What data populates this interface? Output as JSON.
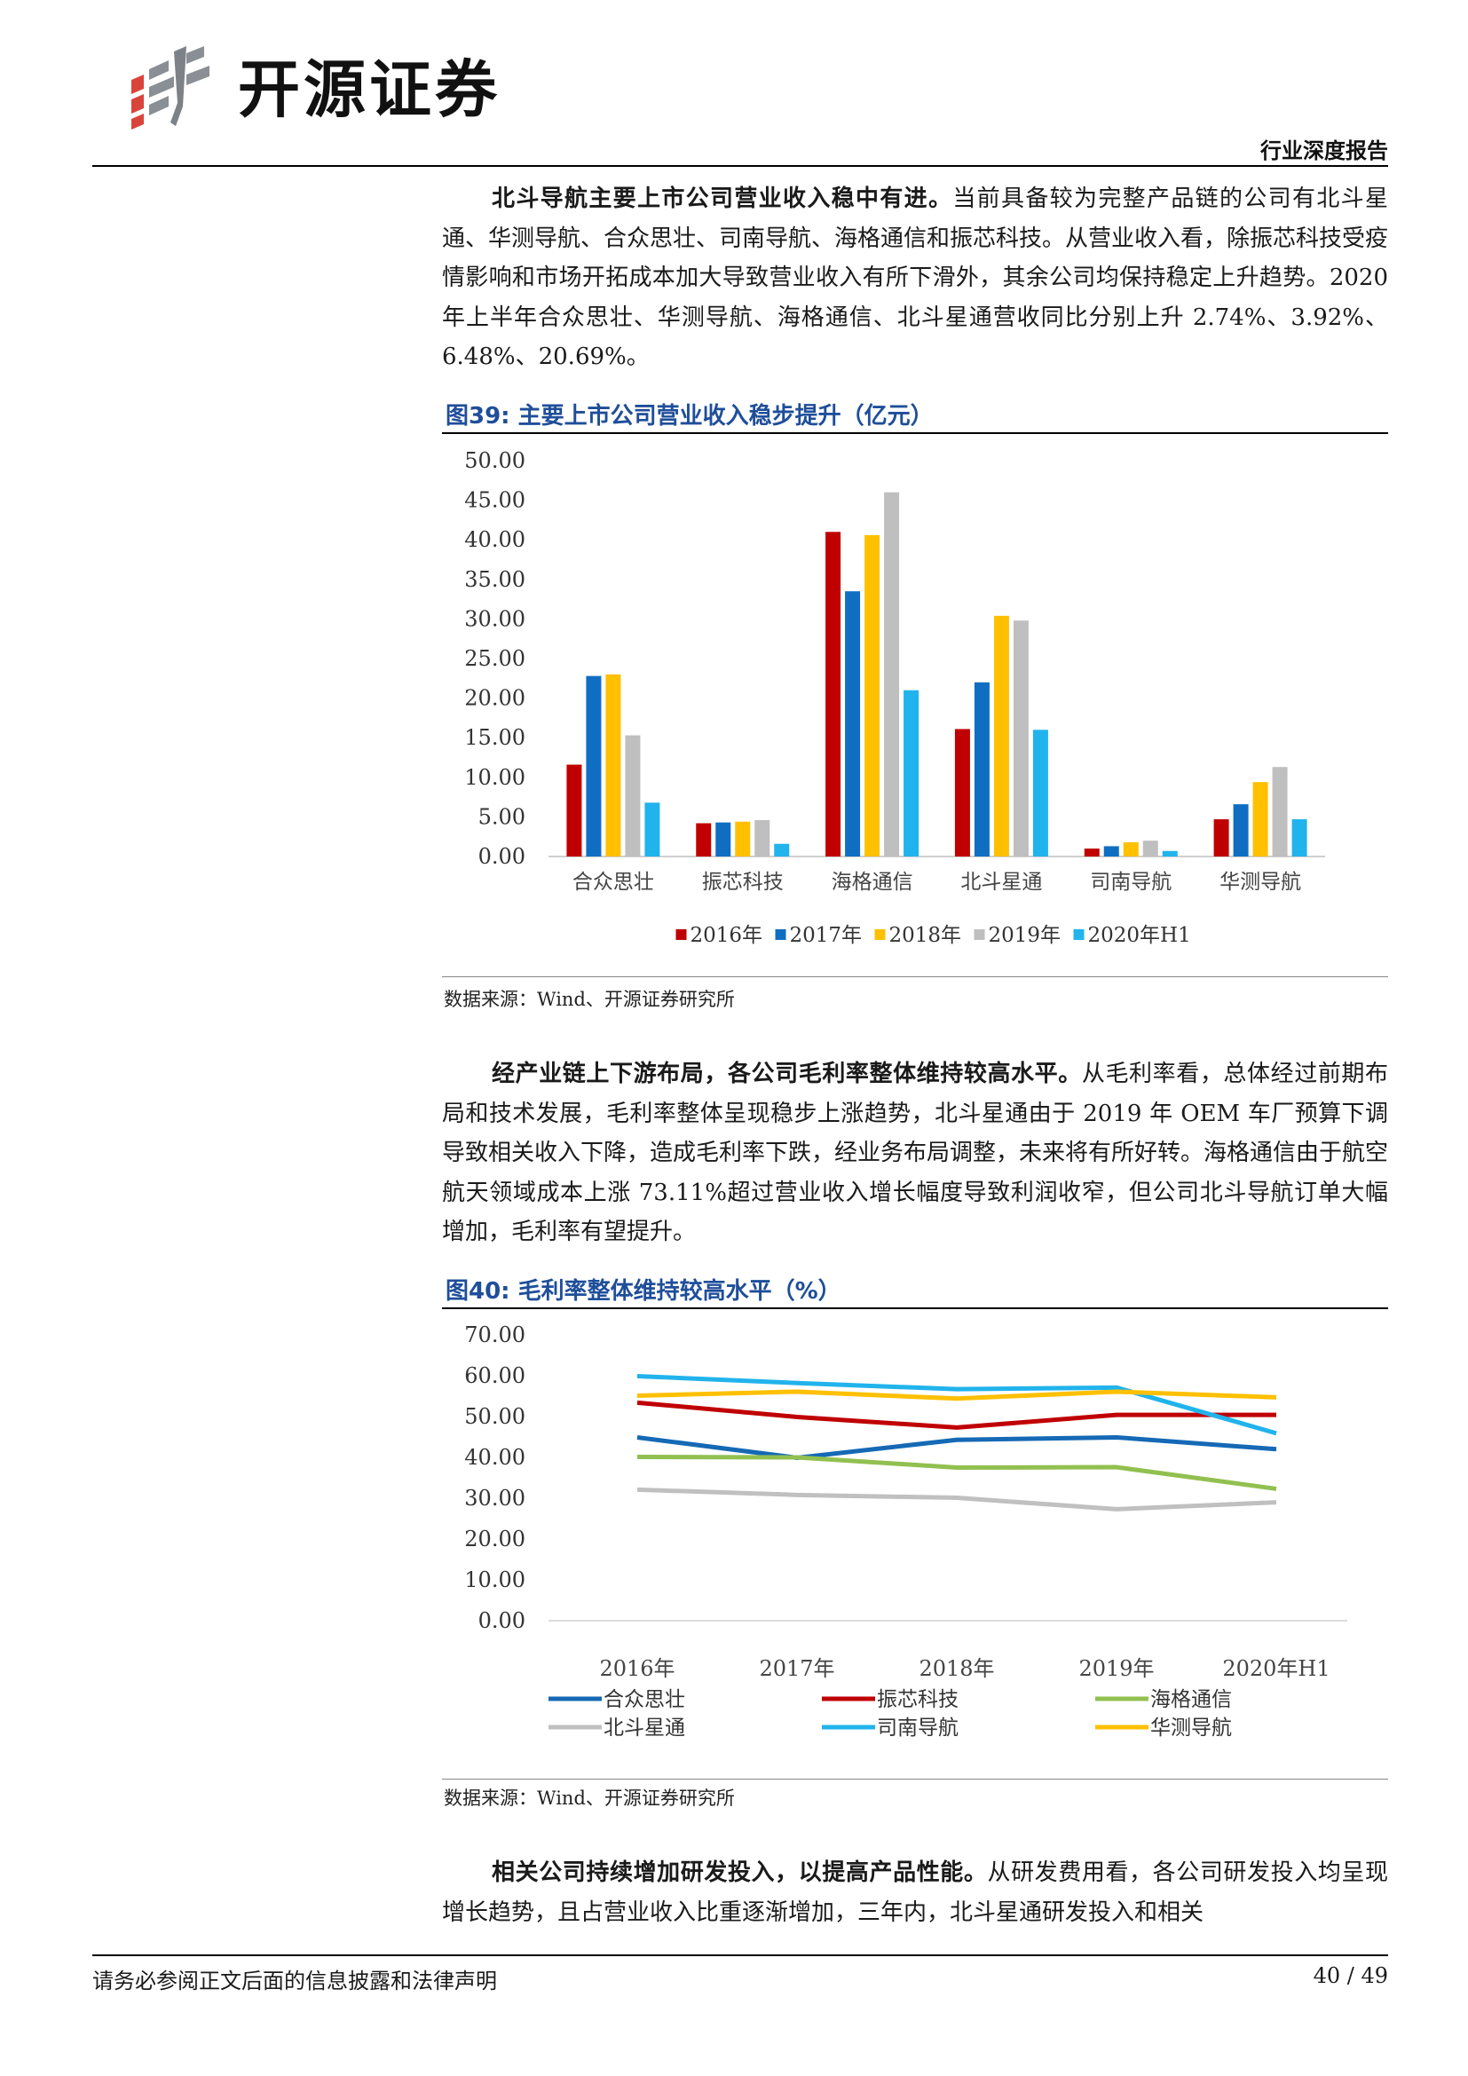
{
  "header": {
    "brand": "开源证券",
    "report_type": "行业深度报告"
  },
  "paragraphs": [
    {
      "lead": "北斗导航主要上市公司营业收入稳中有进。",
      "body": "当前具备较为完整产品链的公司有北斗星通、华测导航、合众思壮、司南导航、海格通信和振芯科技。从营业收入看，除振芯科技受疫情影响和市场开拓成本加大导致营业收入有所下滑外，其余公司均保持稳定上升趋势。2020 年上半年合众思壮、华测导航、海格通信、北斗星通营收同比分别上升 2.74%、3.92%、6.48%、20.69%。"
    },
    {
      "lead": "经产业链上下游布局，各公司毛利率整体维持较高水平。",
      "body": "从毛利率看，总体经过前期布局和技术发展，毛利率整体呈现稳步上涨趋势，北斗星通由于 2019 年 OEM 车厂预算下调导致相关收入下降，造成毛利率下跌，经业务布局调整，未来将有所好转。海格通信由于航空航天领域成本上涨 73.11%超过营业收入增长幅度导致利润收窄，但公司北斗导航订单大幅增加，毛利率有望提升。"
    },
    {
      "lead": "相关公司持续增加研发投入，以提高产品性能。",
      "body": "从研发费用看，各公司研发投入均呈现增长趋势，且占营业收入比重逐渐增加，三年内，北斗星通研发投入和相关"
    }
  ],
  "figures": [
    {
      "title": "图39:  主要上市公司营业收入稳步提升（亿元）",
      "source": "数据来源：Wind、开源证券研究所"
    },
    {
      "title": "图40:  毛利率整体维持较高水平（%）",
      "source": "数据来源：Wind、开源证券研究所"
    }
  ],
  "chart_data": [
    {
      "type": "bar",
      "categories": [
        "合众思壮",
        "振芯科技",
        "海格通信",
        "北斗星通",
        "司南导航",
        "华测导航"
      ],
      "series": [
        {
          "name": "2016年",
          "color": "#c00000",
          "values": [
            11.6,
            4.2,
            41.0,
            16.1,
            1.0,
            4.7
          ]
        },
        {
          "name": "2017年",
          "color": "#0f6ec2",
          "values": [
            22.8,
            4.3,
            33.5,
            22.0,
            1.3,
            6.6
          ]
        },
        {
          "name": "2018年",
          "color": "#ffc000",
          "values": [
            23.0,
            4.4,
            40.6,
            30.4,
            1.8,
            9.4
          ]
        },
        {
          "name": "2019年",
          "color": "#bfbfbf",
          "values": [
            15.3,
            4.6,
            46.0,
            29.8,
            2.0,
            11.3
          ]
        },
        {
          "name": "2020年H1",
          "color": "#21b3ec",
          "values": [
            6.8,
            1.6,
            21.0,
            16.0,
            0.7,
            4.7
          ]
        }
      ],
      "ylim": [
        0,
        50
      ],
      "yticks": [
        "0.00",
        "5.00",
        "10.00",
        "15.00",
        "20.00",
        "25.00",
        "30.00",
        "35.00",
        "40.00",
        "45.00",
        "50.00"
      ],
      "legend": "bottom"
    },
    {
      "type": "line",
      "x": [
        "2016年",
        "2017年",
        "2018年",
        "2019年",
        "2020年H1"
      ],
      "series": [
        {
          "name": "合众思壮",
          "color": "#1569b5",
          "values": [
            44.9,
            39.9,
            44.3,
            44.9,
            42.0
          ]
        },
        {
          "name": "振芯科技",
          "color": "#c00000",
          "values": [
            53.4,
            49.9,
            47.3,
            50.4,
            50.4
          ]
        },
        {
          "name": "海格通信",
          "color": "#92c050",
          "values": [
            40.1,
            40.0,
            37.5,
            37.6,
            32.3
          ]
        },
        {
          "name": "北斗星通",
          "color": "#c0c0c0",
          "values": [
            32.1,
            30.8,
            30.1,
            27.3,
            29.0
          ]
        },
        {
          "name": "司南导航",
          "color": "#21b3ec",
          "values": [
            59.9,
            58.2,
            56.7,
            57.1,
            45.9
          ]
        },
        {
          "name": "华测导航",
          "color": "#ffc000",
          "values": [
            55.1,
            56.1,
            54.4,
            56.1,
            54.7
          ]
        }
      ],
      "ylim": [
        0,
        70
      ],
      "yticks": [
        "0.00",
        "10.00",
        "20.00",
        "30.00",
        "40.00",
        "50.00",
        "60.00",
        "70.00"
      ],
      "legend": "bottom"
    }
  ],
  "footer": {
    "note": "请务必参阅正文后面的信息披露和法律声明",
    "page": "40 / 49"
  }
}
